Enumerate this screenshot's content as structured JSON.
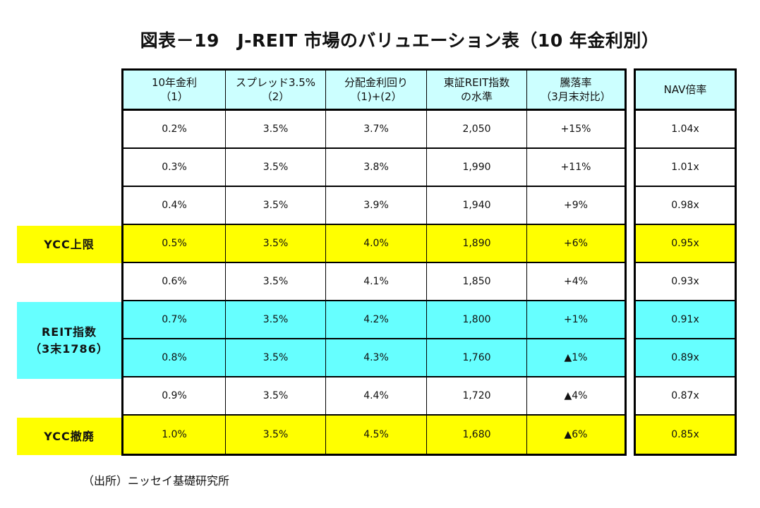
{
  "title": "図表－19　J-REIT 市場のバリュエーション表（10 年金利別）",
  "colors": {
    "header": "#ccffff",
    "ycc": "#ffff00",
    "reit": "#66ffff",
    "normal": "#ffffff"
  },
  "headers": [
    {
      "line1": "10年金利",
      "line2": "（1）"
    },
    {
      "line1": "スプレッド3.5%",
      "line2": "（2）"
    },
    {
      "line1": "分配金利回り",
      "line2": "（1)+(2）"
    },
    {
      "line1": "東証REIT指数",
      "line2": "の水準"
    },
    {
      "line1": "騰落率",
      "line2": "（3月末対比）"
    }
  ],
  "nav_header": "NAV倍率",
  "rows": [
    {
      "rate": "0.2%",
      "spread": "3.5%",
      "yield": "3.7%",
      "index": "2,050",
      "change": "+15%",
      "nav": "1.04x",
      "highlight": "normal"
    },
    {
      "rate": "0.3%",
      "spread": "3.5%",
      "yield": "3.8%",
      "index": "1,990",
      "change": "+11%",
      "nav": "1.01x",
      "highlight": "normal"
    },
    {
      "rate": "0.4%",
      "spread": "3.5%",
      "yield": "3.9%",
      "index": "1,940",
      "change": "+9%",
      "nav": "0.98x",
      "highlight": "normal"
    },
    {
      "rate": "0.5%",
      "spread": "3.5%",
      "yield": "4.0%",
      "index": "1,890",
      "change": "+6%",
      "nav": "0.95x",
      "highlight": "ycc"
    },
    {
      "rate": "0.6%",
      "spread": "3.5%",
      "yield": "4.1%",
      "index": "1,850",
      "change": "+4%",
      "nav": "0.93x",
      "highlight": "normal"
    },
    {
      "rate": "0.7%",
      "spread": "3.5%",
      "yield": "4.2%",
      "index": "1,800",
      "change": "+1%",
      "nav": "0.91x",
      "highlight": "reit"
    },
    {
      "rate": "0.8%",
      "spread": "3.5%",
      "yield": "4.3%",
      "index": "1,760",
      "change": "▲1%",
      "nav": "0.89x",
      "highlight": "reit"
    },
    {
      "rate": "0.9%",
      "spread": "3.5%",
      "yield": "4.4%",
      "index": "1,720",
      "change": "▲4%",
      "nav": "0.87x",
      "highlight": "normal"
    },
    {
      "rate": "1.0%",
      "spread": "3.5%",
      "yield": "4.5%",
      "index": "1,680",
      "change": "▲6%",
      "nav": "0.85x",
      "highlight": "ycc"
    }
  ],
  "side_labels": {
    "ycc_upper": "YCC上限",
    "reit_index_line1": "REIT指数",
    "reit_index_line2": "（3末1786）",
    "ycc_abolish": "YCC撤廃"
  },
  "source": "（出所）ニッセイ基礎研究所"
}
